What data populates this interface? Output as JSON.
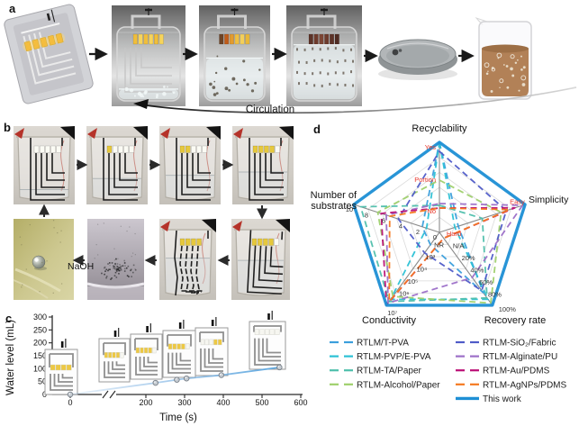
{
  "panel_labels": {
    "a": "a",
    "b": "b",
    "c": "c",
    "d": "d"
  },
  "panel_a": {
    "circulation_label": "Circulation"
  },
  "panel_b": {
    "naoh_label": "NaOH"
  },
  "chart_data": [
    {
      "id": "water-level-curve",
      "type": "line",
      "title": "",
      "xlabel": "Time (s)",
      "ylabel": "Water level (mL)",
      "x": [
        0,
        225,
        280,
        305,
        395,
        545
      ],
      "y": [
        0,
        45,
        57,
        62,
        75,
        105
      ],
      "xticks": [
        0,
        200,
        300,
        400,
        500,
        600
      ],
      "yticks": [
        0,
        50,
        100,
        150,
        200,
        250,
        300
      ],
      "xlim": [
        0,
        600
      ],
      "ylim": [
        0,
        300
      ],
      "x_axis_break_between": [
        0,
        200
      ],
      "line_color": "#6fAcdf",
      "point_fill": "#c6ccd2",
      "point_stroke": "#79818a",
      "inset_led_states": [
        [
          "on",
          "on",
          "on",
          "on"
        ],
        [
          "on",
          "on",
          "on",
          "on",
          "off"
        ],
        [
          "on",
          "on",
          "on",
          "on",
          "off"
        ],
        [
          "on",
          "on",
          "on",
          "on",
          "off"
        ],
        [
          "off",
          "off",
          "off",
          "on",
          "on"
        ],
        [
          "off",
          "off",
          "off",
          "off",
          "off"
        ]
      ]
    },
    {
      "id": "comparison-radar",
      "type": "radar",
      "rings": 6,
      "axes": [
        {
          "label": "Recyclability",
          "tick_color": "#e8382d",
          "ticks": [
            {
              "text": "No",
              "r": 0.24
            },
            {
              "text": "Portion",
              "r": 0.59
            },
            {
              "text": "Yes",
              "r": 0.95
            }
          ]
        },
        {
          "label": "Simplicity",
          "tick_color": "#e8382d",
          "ticks": [
            {
              "text": "Hard",
              "r": 0.2
            },
            {
              "text": "Easy",
              "r": 0.93
            }
          ]
        },
        {
          "label": "Recovery rate",
          "tick_color": "#333333",
          "ticks": [
            {
              "text": "N/A",
              "r": 0.167
            },
            {
              "text": "20%",
              "r": 0.333
            },
            {
              "text": "40%",
              "r": 0.5
            },
            {
              "text": "60%",
              "r": 0.667
            },
            {
              "text": "80%",
              "r": 0.833
            },
            {
              "text": "100%",
              "r": 1
            }
          ]
        },
        {
          "label": "Conductivity",
          "tick_color": "#333333",
          "ticks": [
            {
              "text": "NR",
              "r": 0.167
            },
            {
              "text": "10³",
              "r": 0.333
            },
            {
              "text": "10⁴",
              "r": 0.5
            },
            {
              "text": "10⁵",
              "r": 0.667
            },
            {
              "text": "10⁶",
              "r": 0.833
            },
            {
              "text": "10⁷",
              "r": 1
            }
          ]
        },
        {
          "label": "Number of substrates",
          "label_lines": [
            "Number of",
            "substrates"
          ],
          "tick_color": "#333333",
          "ticks": [
            {
              "text": "0",
              "r": 0
            },
            {
              "text": "2",
              "r": 0.2
            },
            {
              "text": "4",
              "r": 0.4
            },
            {
              "text": "6",
              "r": 0.6
            },
            {
              "text": "8",
              "r": 0.8
            },
            {
              "text": "10",
              "r": 1
            }
          ]
        }
      ],
      "series": [
        {
          "name": "RTLM/T-PVA",
          "color": "#3b9fdc",
          "style": "dashed",
          "values": [
            1.0,
            0.22,
            0.83,
            0.17,
            0.2
          ]
        },
        {
          "name": "RTLM-PVP/E-PVA",
          "color": "#2bc1d5",
          "style": "dashed",
          "values": [
            1.0,
            0.18,
            0.92,
            0.92,
            0.15
          ]
        },
        {
          "name": "RTLM-TA/Paper",
          "color": "#4fbfac",
          "style": "dashed",
          "values": [
            0.3,
            0.5,
            0.9,
            0.95,
            0.92
          ]
        },
        {
          "name": "RTLM-Alcohol/Paper",
          "color": "#9ed06b",
          "style": "dashed",
          "values": [
            0.58,
            0.72,
            0.97,
            0.88,
            0.72
          ]
        },
        {
          "name": "RTLM-SiO₂/Fabric",
          "color": "#4f5bc8",
          "style": "dashed",
          "values": [
            0.9,
            0.78,
            0.8,
            0.28,
            0.48
          ]
        },
        {
          "name": "RTLM-Alginate/PU",
          "color": "#9c6fc8",
          "style": "dashed",
          "values": [
            0.32,
            0.97,
            0.62,
            0.97,
            0.62
          ]
        },
        {
          "name": "RTLM-Au/PDMS",
          "color": "#bb1077",
          "style": "dashed",
          "values": [
            0.27,
            0.88,
            0.08,
            1.0,
            0.68
          ]
        },
        {
          "name": "RTLM-AgNPs/PDMS",
          "color": "#f5791f",
          "style": "dashed",
          "values": [
            0.27,
            0.82,
            0.08,
            0.95,
            0.58
          ]
        },
        {
          "name": "This work",
          "color": "#1e8fd5",
          "style": "solid",
          "values": [
            1,
            1,
            1,
            1,
            1
          ]
        }
      ]
    }
  ]
}
